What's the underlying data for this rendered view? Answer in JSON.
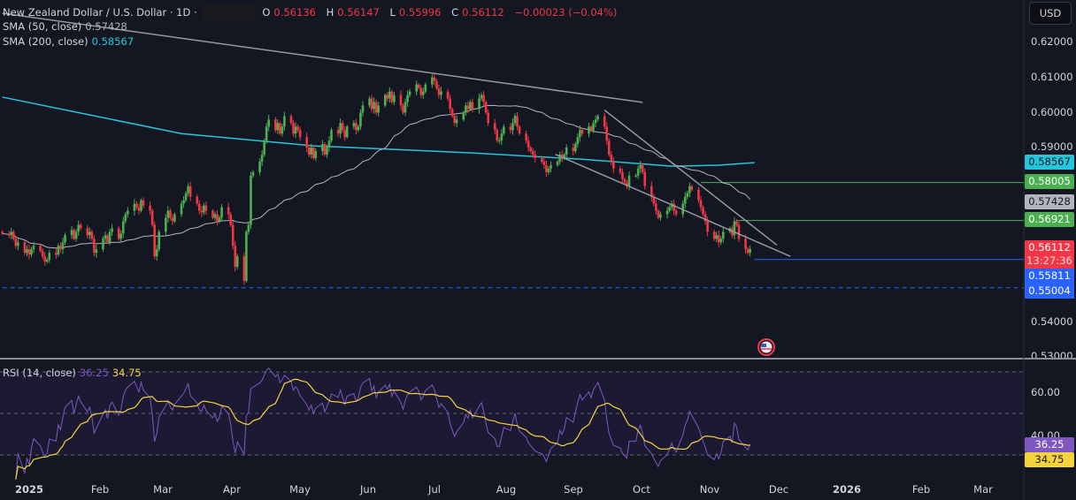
{
  "header": {
    "symbol": "New Zealand Dollar / U.S. Dollar · 1D ·",
    "o_label": "O",
    "open": "0.56136",
    "h_label": "H",
    "high": "0.56147",
    "l_label": "L",
    "low": "0.55996",
    "c_label": "C",
    "close": "0.56112",
    "change": "−0.00023 (−0.04%)"
  },
  "indicators": {
    "sma50_label": "SMA (50, close)",
    "sma50_value": "0.57428",
    "sma200_label": "SMA (200, close)",
    "sma200_value": "0.58567",
    "rsi_label": "RSI (14, close)",
    "rsi_value": "36.25",
    "rsi_ma_value": "34.75"
  },
  "currency_button": "USD",
  "price_axis": {
    "ticks": [
      "0.62000",
      "0.61000",
      "0.60000",
      "0.59000",
      "0.54000",
      "0.53000"
    ],
    "badges": {
      "sma200": "0.58567",
      "level_upper": "0.58005",
      "sma50": "0.57428",
      "level_lower": "0.56921",
      "last_price": "0.56112",
      "countdown": "13:27:36",
      "support": "0.55811",
      "dashed_level": "0.55004"
    }
  },
  "rsi_axis": {
    "ticks": [
      "60.00",
      "40.00"
    ],
    "rsi_badge": "36.25",
    "ma_badge": "34.75"
  },
  "time_axis": [
    "2025",
    "Feb",
    "Mar",
    "Apr",
    "May",
    "Jun",
    "Jul",
    "Aug",
    "Sep",
    "Oct",
    "Nov",
    "Dec",
    "2026",
    "Feb",
    "Mar"
  ],
  "colors": {
    "background": "#131722",
    "up": "#4caf50",
    "down": "#f23645",
    "sma50": "#b2b5be",
    "sma200": "#26c6da",
    "rsi": "#7e57c2",
    "rsi_ma": "#f5d33c",
    "level": "#4caf50",
    "support": "#2962ff"
  },
  "chart_data": {
    "type": "candlestick",
    "symbol": "NZDUSD",
    "interval": "1D",
    "start_date": "2024-12-20",
    "ylim": [
      0.53,
      0.625
    ],
    "closes": [
      0.5655,
      0.565,
      0.566,
      0.564,
      0.562,
      0.563,
      0.56,
      0.561,
      0.5595,
      0.561,
      0.562,
      0.5605,
      0.559,
      0.5575,
      0.558,
      0.56,
      0.5595,
      0.562,
      0.561,
      0.563,
      0.565,
      0.5665,
      0.564,
      0.566,
      0.568,
      0.567,
      0.565,
      0.566,
      0.564,
      0.56,
      0.561,
      0.564,
      0.565,
      0.563,
      0.566,
      0.567,
      0.564,
      0.5655,
      0.569,
      0.571,
      0.572,
      0.574,
      0.573,
      0.572,
      0.575,
      0.5735,
      0.572,
      0.568,
      0.559,
      0.561,
      0.566,
      0.57,
      0.572,
      0.57,
      0.569,
      0.571,
      0.574,
      0.575,
      0.577,
      0.579,
      0.576,
      0.574,
      0.572,
      0.5715,
      0.5735,
      0.572,
      0.57,
      0.571,
      0.569,
      0.57,
      0.573,
      0.571,
      0.568,
      0.562,
      0.556,
      0.559,
      0.552,
      0.566,
      0.568,
      0.582,
      0.583,
      0.586,
      0.588,
      0.592,
      0.596,
      0.598,
      0.595,
      0.597,
      0.594,
      0.596,
      0.599,
      0.597,
      0.594,
      0.596,
      0.595,
      0.593,
      0.59,
      0.588,
      0.59,
      0.587,
      0.589,
      0.591,
      0.588,
      0.59,
      0.592,
      0.595,
      0.594,
      0.597,
      0.595,
      0.593,
      0.596,
      0.597,
      0.595,
      0.596,
      0.6,
      0.602,
      0.604,
      0.601,
      0.603,
      0.6,
      0.602,
      0.605,
      0.604,
      0.606,
      0.603,
      0.605,
      0.602,
      0.6,
      0.603,
      0.605,
      0.606,
      0.608,
      0.607,
      0.605,
      0.606,
      0.608,
      0.61,
      0.609,
      0.607,
      0.605,
      0.606,
      0.604,
      0.601,
      0.599,
      0.597,
      0.598,
      0.6,
      0.602,
      0.601,
      0.603,
      0.601,
      0.604,
      0.605,
      0.603,
      0.6,
      0.597,
      0.595,
      0.592,
      0.592,
      0.594,
      0.596,
      0.595,
      0.597,
      0.599,
      0.596,
      0.594,
      0.592,
      0.59,
      0.589,
      0.588,
      0.587,
      0.586,
      0.585,
      0.583,
      0.584,
      0.585,
      0.586,
      0.588,
      0.587,
      0.588,
      0.59,
      0.589,
      0.591,
      0.593,
      0.595,
      0.594,
      0.596,
      0.595,
      0.597,
      0.598,
      0.599,
      0.596,
      0.592,
      0.588,
      0.586,
      0.584,
      0.583,
      0.581,
      0.58,
      0.579,
      0.582,
      0.582,
      0.584,
      0.585,
      0.583,
      0.579,
      0.576,
      0.574,
      0.572,
      0.57,
      0.571,
      0.572,
      0.573,
      0.574,
      0.572,
      0.571,
      0.574,
      0.576,
      0.577,
      0.579,
      0.578,
      0.575,
      0.573,
      0.571,
      0.569,
      0.566,
      0.564,
      0.565,
      0.563,
      0.564,
      0.566,
      0.567,
      0.565,
      0.569,
      0.568,
      0.564,
      0.561,
      0.56,
      0.5611
    ],
    "sma200": [
      [
        "2024-12-20",
        0.6044
      ],
      [
        "2025-03-10",
        0.594
      ],
      [
        "2025-05-08",
        0.5905
      ],
      [
        "2025-07-17",
        0.5885
      ],
      [
        "2025-09-05",
        0.5867
      ],
      [
        "2025-10-15",
        0.5847
      ],
      [
        "2025-11-05",
        0.585
      ],
      [
        "2025-11-21",
        0.5857
      ]
    ],
    "trendlines": [
      {
        "from": [
          "2024-12-20",
          0.6283
        ],
        "to": [
          "2025-10-02",
          0.6029
        ]
      },
      {
        "from": [
          "2025-09-15",
          0.6007
        ],
        "to": [
          "2025-12-01",
          0.5622
        ]
      },
      {
        "from": [
          "2025-08-24",
          0.5881
        ],
        "to": [
          "2025-12-07",
          0.559
        ]
      }
    ],
    "horizontal_levels": [
      {
        "price": 0.58005,
        "from": "2025-10-28",
        "style": "solid",
        "color": "#4caf50"
      },
      {
        "price": 0.56921,
        "from": "2025-11-13",
        "style": "solid",
        "color": "#4caf50"
      },
      {
        "price": 0.55811,
        "from": "2025-11-21",
        "style": "solid",
        "color": "#2962ff"
      },
      {
        "price": 0.55004,
        "from": "2024-12-20",
        "style": "dashed",
        "color": "#2962ff"
      }
    ],
    "rsi": {
      "period": 14,
      "ma_period": 14,
      "bands": [
        70,
        50,
        30
      ],
      "last": 36.25,
      "ma_last": 34.75
    }
  }
}
